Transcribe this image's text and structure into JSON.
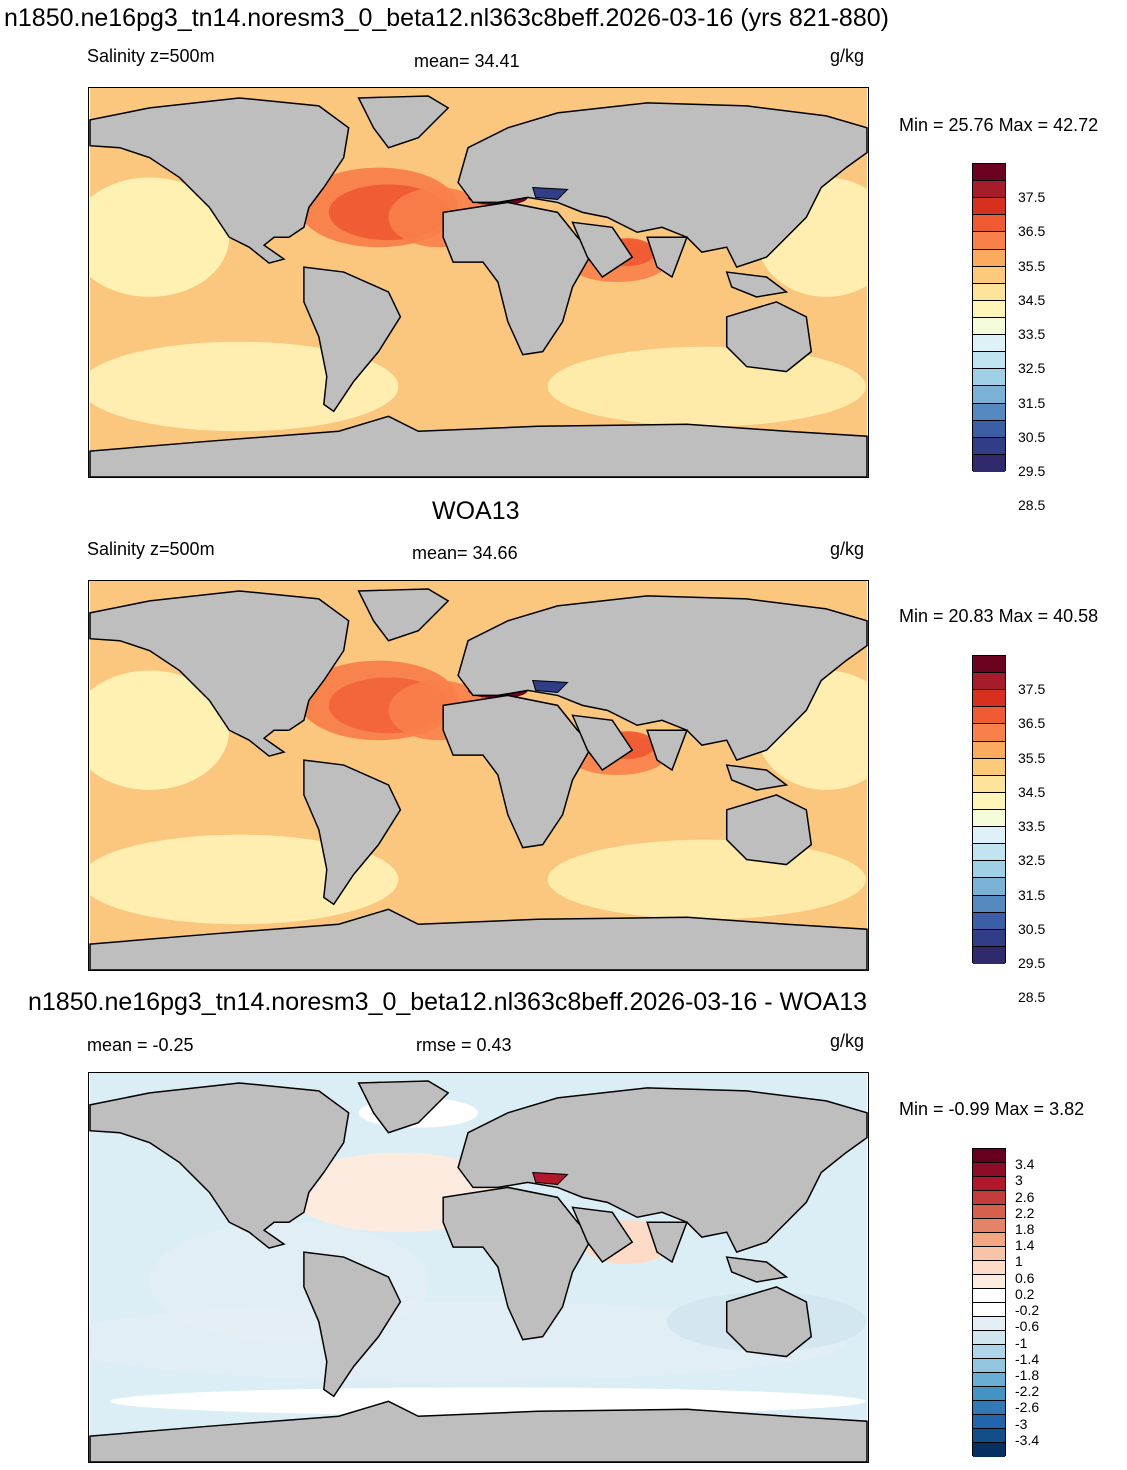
{
  "figure": {
    "title": "n1850.ne16pg3_tn14.noresm3_0_beta12.nl363c8beff.2026-03-16 (yrs 821-880)",
    "panels": [
      {
        "id": "model",
        "heading": "",
        "left": "Salinity z=500m",
        "center": "mean=  34.41",
        "units": "g/kg",
        "minmax": "Min =  25.76 Max =  42.72",
        "ocean_color": "#fbc67e",
        "colorbar": {
          "colors": [
            "#6b0320",
            "#a51d2a",
            "#d7301f",
            "#ef5a33",
            "#f8804a",
            "#fcab5e",
            "#fdc97b",
            "#fee39a",
            "#fff5b8",
            "#f4fbd8",
            "#deF1f6",
            "#c0e4f0",
            "#9fd0e6",
            "#7ab1d5",
            "#5689c0",
            "#3c5ea6",
            "#2f3e86",
            "#2e2a6b"
          ],
          "labels": [
            "37.5",
            "36.5",
            "35.5",
            "34.5",
            "33.5",
            "32.5",
            "31.5",
            "30.5",
            "29.5",
            "28.5"
          ]
        }
      },
      {
        "id": "obs",
        "heading": "WOA13",
        "left": "Salinity z=500m",
        "center": "mean=  34.66",
        "units": "g/kg",
        "minmax": "Min =  20.83 Max =  40.58",
        "ocean_color": "#fbc67e",
        "colorbar": {
          "colors": [
            "#6b0320",
            "#a51d2a",
            "#d7301f",
            "#ef5a33",
            "#f8804a",
            "#fcab5e",
            "#fdc97b",
            "#fee39a",
            "#fff5b8",
            "#f4fbd8",
            "#def1f6",
            "#c0e4f0",
            "#9fd0e6",
            "#7ab1d5",
            "#5689c0",
            "#3c5ea6",
            "#2f3e86",
            "#2e2a6b"
          ],
          "labels": [
            "37.5",
            "36.5",
            "35.5",
            "34.5",
            "33.5",
            "32.5",
            "31.5",
            "30.5",
            "29.5",
            "28.5"
          ]
        }
      },
      {
        "id": "diff",
        "heading": "n1850.ne16pg3_tn14.noresm3_0_beta12.nl363c8beff.2026-03-16 - WOA13",
        "left": "mean =  -0.25",
        "center": "rmse =   0.43",
        "units": "g/kg",
        "minmax": "Min =  -0.99 Max =   3.82",
        "ocean_color": "#dbeef6",
        "colorbar": {
          "colors": [
            "#67001f",
            "#8c0d25",
            "#b2182b",
            "#c43c3c",
            "#d6604d",
            "#e58368",
            "#f4a582",
            "#f8c4a8",
            "#fddbc7",
            "#fdebdf",
            "#ffffff",
            "#ffffff",
            "#e4eef5",
            "#d1e5f0",
            "#b0d4e8",
            "#92c5de",
            "#6aaed4",
            "#4393c3",
            "#3179b6",
            "#2166ac",
            "#124e8c",
            "#053061"
          ],
          "labels": [
            "3.4",
            "3",
            "2.6",
            "2.2",
            "1.8",
            "1.4",
            "1",
            "0.6",
            "0.2",
            "-0.2",
            "-0.6",
            "-1",
            "-1.4",
            "-1.8",
            "-2.2",
            "-2.6",
            "-3",
            "-3.4"
          ]
        }
      }
    ]
  }
}
